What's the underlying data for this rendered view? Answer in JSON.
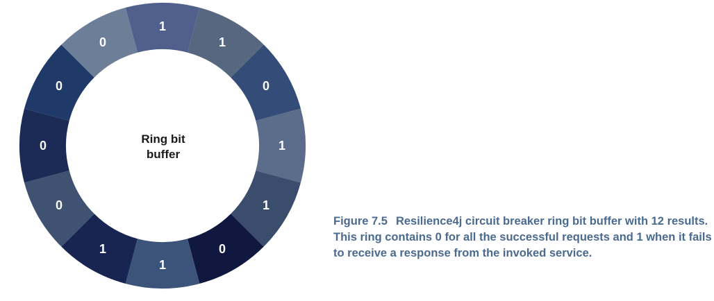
{
  "center_label": [
    "Ring bit",
    "buffer"
  ],
  "segments": [
    {
      "label": "1",
      "color": "#515f8c"
    },
    {
      "label": "1",
      "color": "#56677f"
    },
    {
      "label": "0",
      "color": "#334c78"
    },
    {
      "label": "1",
      "color": "#5b6d8a"
    },
    {
      "label": "1",
      "color": "#3a4d6d"
    },
    {
      "label": "0",
      "color": "#111840"
    },
    {
      "label": "1",
      "color": "#3c5479"
    },
    {
      "label": "1",
      "color": "#182452"
    },
    {
      "label": "0",
      "color": "#3f5272"
    },
    {
      "label": "0",
      "color": "#1c2b55"
    },
    {
      "label": "0",
      "color": "#1f3a68"
    },
    {
      "label": "0",
      "color": "#6d7e98"
    }
  ],
  "caption": {
    "figure_number": "Figure 7.5",
    "text": "Resilience4j circuit breaker ring bit buffer with 12 results. This ring contains 0 for all the successful requests and 1 when it fails to receive a response from the invoked service."
  }
}
